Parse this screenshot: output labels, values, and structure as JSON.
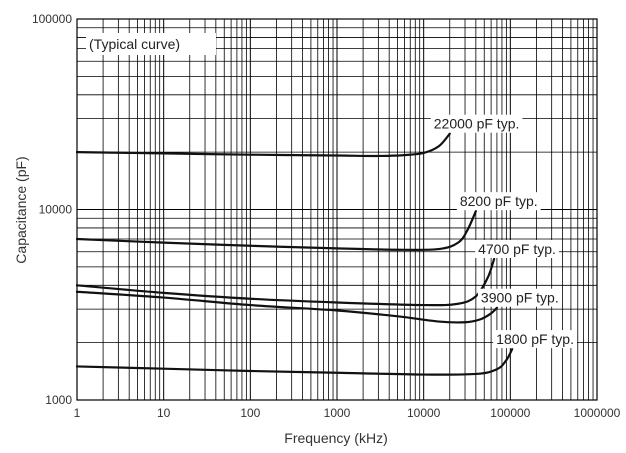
{
  "chart_data": {
    "type": "line",
    "title": "",
    "annotation_top_left": "(Typical curve)",
    "xlabel": "Frequency (kHz)",
    "ylabel": "Capacitance (pF)",
    "x_scale": "log",
    "y_scale": "log",
    "xlim": [
      1,
      1000000
    ],
    "ylim": [
      1000,
      100000
    ],
    "x_tick_labels": [
      "1",
      "10",
      "100",
      "1000",
      "10000",
      "100000",
      "1000000"
    ],
    "y_tick_labels": [
      "1000",
      "10000",
      "100000"
    ],
    "grid": true,
    "line_color": "#111111",
    "grid_color": "#000000",
    "series": [
      {
        "name": "22000 pF typ.",
        "points": [
          [
            1,
            20000
          ],
          [
            10,
            19700
          ],
          [
            100,
            19400
          ],
          [
            1000,
            19200
          ],
          [
            3000,
            19100
          ],
          [
            6000,
            19300
          ],
          [
            10000,
            19800
          ],
          [
            15000,
            21500
          ],
          [
            20000,
            25000
          ]
        ]
      },
      {
        "name": "8200 pF typ.",
        "points": [
          [
            1,
            7000
          ],
          [
            10,
            6700
          ],
          [
            100,
            6450
          ],
          [
            1000,
            6250
          ],
          [
            5000,
            6150
          ],
          [
            15000,
            6200
          ],
          [
            25000,
            6700
          ],
          [
            32000,
            7800
          ],
          [
            40000,
            9800
          ]
        ]
      },
      {
        "name": "4700 pF typ.",
        "points": [
          [
            1,
            4000
          ],
          [
            10,
            3650
          ],
          [
            100,
            3400
          ],
          [
            1000,
            3250
          ],
          [
            10000,
            3150
          ],
          [
            25000,
            3200
          ],
          [
            40000,
            3500
          ],
          [
            55000,
            4400
          ],
          [
            65000,
            5500
          ]
        ]
      },
      {
        "name": "3900 pF typ.",
        "points": [
          [
            1,
            3700
          ],
          [
            10,
            3450
          ],
          [
            100,
            3150
          ],
          [
            1000,
            2950
          ],
          [
            5000,
            2750
          ],
          [
            15000,
            2580
          ],
          [
            30000,
            2560
          ],
          [
            45000,
            2650
          ],
          [
            60000,
            2850
          ],
          [
            70000,
            3050
          ]
        ]
      },
      {
        "name": "1800 pF typ.",
        "points": [
          [
            1,
            1500
          ],
          [
            10,
            1460
          ],
          [
            100,
            1420
          ],
          [
            1000,
            1390
          ],
          [
            10000,
            1360
          ],
          [
            40000,
            1370
          ],
          [
            70000,
            1450
          ],
          [
            90000,
            1620
          ],
          [
            105000,
            1850
          ]
        ]
      }
    ]
  }
}
